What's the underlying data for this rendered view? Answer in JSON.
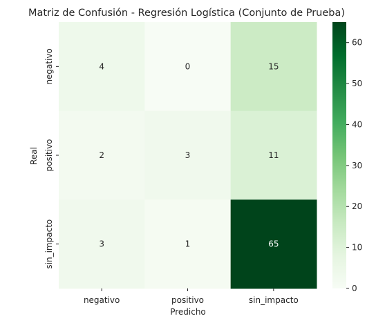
{
  "chart_data": {
    "type": "heatmap",
    "title": "Matriz de Confusión - Regresión Logística (Conjunto de Prueba)",
    "xlabel": "Predicho",
    "ylabel": "Real",
    "x_categories": [
      "negativo",
      "positivo",
      "sin_impacto"
    ],
    "y_categories": [
      "negativo",
      "positivo",
      "sin_impacto"
    ],
    "values": [
      [
        4,
        0,
        15
      ],
      [
        2,
        3,
        11
      ],
      [
        3,
        1,
        65
      ]
    ],
    "colorbar": {
      "min": 0,
      "max": 65,
      "ticks": [
        "0",
        "10",
        "20",
        "30",
        "40",
        "50",
        "60"
      ]
    },
    "colormap": "Greens",
    "colormap_stops": [
      "#f7fcf5",
      "#e5f5e0",
      "#c7e9c0",
      "#a1d99b",
      "#74c476",
      "#41ab5d",
      "#238b45",
      "#006d2c",
      "#00441b"
    ],
    "annotated": true
  }
}
